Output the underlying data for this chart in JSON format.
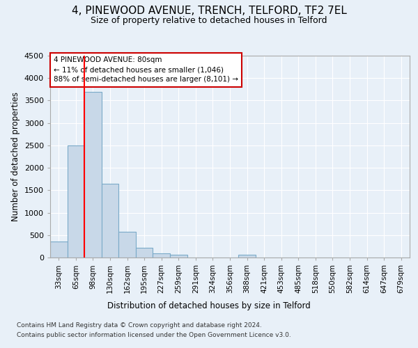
{
  "title": "4, PINEWOOD AVENUE, TRENCH, TELFORD, TF2 7EL",
  "subtitle": "Size of property relative to detached houses in Telford",
  "xlabel": "Distribution of detached houses by size in Telford",
  "ylabel": "Number of detached properties",
  "categories": [
    "33sqm",
    "65sqm",
    "98sqm",
    "130sqm",
    "162sqm",
    "195sqm",
    "227sqm",
    "259sqm",
    "291sqm",
    "324sqm",
    "356sqm",
    "388sqm",
    "421sqm",
    "453sqm",
    "485sqm",
    "518sqm",
    "550sqm",
    "582sqm",
    "614sqm",
    "647sqm",
    "679sqm"
  ],
  "values": [
    350,
    2500,
    3700,
    1650,
    580,
    220,
    100,
    60,
    0,
    0,
    0,
    60,
    0,
    0,
    0,
    0,
    0,
    0,
    0,
    0,
    0
  ],
  "bar_color": "#c8d8e8",
  "bar_edge_color": "#7aaac8",
  "red_line_index": 1.5,
  "annotation_text": "4 PINEWOOD AVENUE: 80sqm\n← 11% of detached houses are smaller (1,046)\n88% of semi-detached houses are larger (8,101) →",
  "ylim": [
    0,
    4500
  ],
  "yticks": [
    0,
    500,
    1000,
    1500,
    2000,
    2500,
    3000,
    3500,
    4000,
    4500
  ],
  "footnote1": "Contains HM Land Registry data © Crown copyright and database right 2024.",
  "footnote2": "Contains public sector information licensed under the Open Government Licence v3.0.",
  "background_color": "#e8f0f8",
  "plot_bg_color": "#e8f0f8",
  "grid_color": "#ffffff",
  "title_fontsize": 11,
  "subtitle_fontsize": 9,
  "annotation_box_color": "#ffffff",
  "annotation_box_edge": "#cc0000"
}
